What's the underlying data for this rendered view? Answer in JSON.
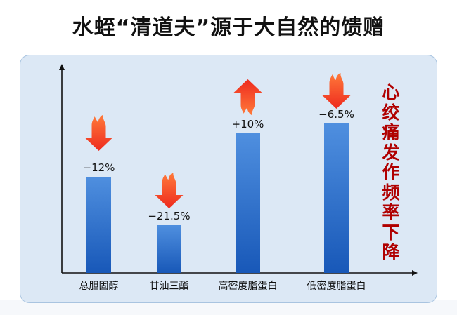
{
  "title": "水蛭“清道夫”源于大自然的馈赠",
  "colors": {
    "bar_top": "#4f8fdf",
    "bar_bottom": "#1858b8",
    "arrow": "#f23a22",
    "side_label": "#b00000",
    "panel": "#dce8f5"
  },
  "chart_data": {
    "type": "bar",
    "categories": [
      "总胆固醇",
      "甘油三酯",
      "高密度脂蛋白",
      "低密度脂蛋白"
    ],
    "values": [
      -12,
      -21.5,
      10,
      -6.5
    ],
    "value_labels": [
      "−12%",
      "−21.5%",
      "+10%",
      "−6.5%"
    ],
    "directions": [
      "down",
      "down",
      "up",
      "down"
    ],
    "direction_icon": "flame-arrow-icon",
    "side_label": "心绞痛发作频率下降",
    "grid": false,
    "y_ticks": false
  }
}
